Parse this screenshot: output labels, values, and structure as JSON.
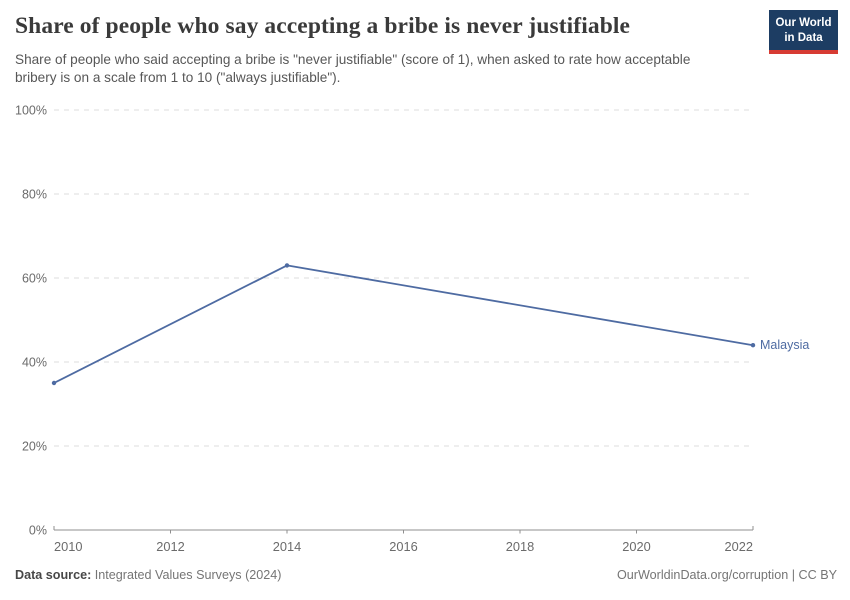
{
  "header": {
    "title": "Share of people who say accepting a bribe is never justifiable",
    "subtitle": "Share of people who said accepting a bribe is \"never justifiable\" (score of 1), when asked to rate how acceptable bribery is on a scale from 1 to 10 (\"always justifiable\").",
    "logo": {
      "line1": "Our World",
      "line2": "in Data"
    }
  },
  "chart_data": {
    "type": "line",
    "title": "Share of people who say accepting a bribe is never justifiable",
    "x": [
      2010,
      2014,
      2022
    ],
    "series": [
      {
        "name": "Malaysia",
        "values": [
          35,
          63,
          44
        ],
        "color": "#4e6ba2"
      }
    ],
    "xlabel": "",
    "ylabel": "",
    "xlim": [
      2010,
      2022
    ],
    "ylim": [
      0,
      100
    ],
    "x_ticks": [
      2010,
      2012,
      2014,
      2016,
      2018,
      2020,
      2022
    ],
    "y_ticks": [
      0,
      20,
      40,
      60,
      80,
      100
    ],
    "y_tick_suffix": "%",
    "grid": "horizontal-dashed",
    "legend": "end-of-line-label"
  },
  "footer": {
    "source_label": "Data source:",
    "source_value": "Integrated Values Surveys (2024)",
    "credit": "OurWorldinData.org/corruption | CC BY"
  },
  "colors": {
    "line": "#4e6ba2",
    "grid": "#dcdcdc",
    "axis": "#8f8f8f",
    "tick_label": "#6b6b6b",
    "title": "#3a3a3a",
    "subtitle": "#575757",
    "logo_bg": "#1d3d63",
    "logo_red": "#d73b33"
  }
}
